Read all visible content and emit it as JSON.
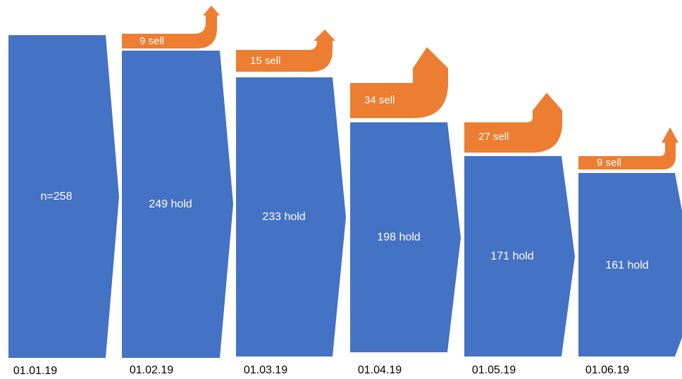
{
  "colors": {
    "hold": "#4472C4",
    "sell": "#ED7D31",
    "text_on_shape": "#FFFFFF",
    "date_text": "#000000"
  },
  "stages": [
    {
      "date": "01.01.19",
      "label": "n=258",
      "count": 258
    },
    {
      "date": "01.02.19",
      "label": "249 hold",
      "count": 249,
      "sell_label": "9 sell",
      "sell": 9
    },
    {
      "date": "01.03.19",
      "label": "233 hold",
      "count": 233,
      "sell_label": "15 sell",
      "sell": 15
    },
    {
      "date": "01.04.19",
      "label": "198 hold",
      "count": 198,
      "sell_label": "34 sell",
      "sell": 34
    },
    {
      "date": "01.05.19",
      "label": "171 hold",
      "count": 171,
      "sell_label": "27 sell",
      "sell": 27
    },
    {
      "date": "01.06.19",
      "label": "161 hold",
      "count": 161,
      "sell_label": "9 sell",
      "sell": 9
    }
  ]
}
